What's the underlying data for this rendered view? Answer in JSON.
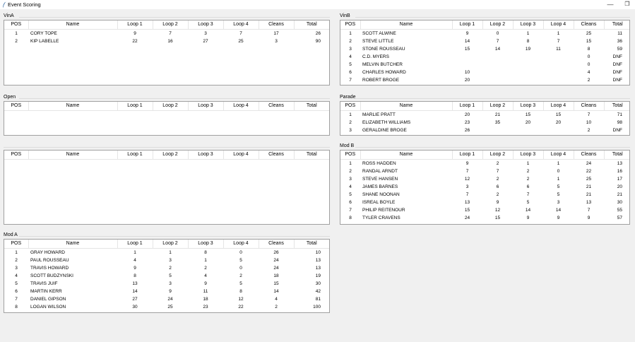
{
  "window": {
    "title": "Event Scoring"
  },
  "columns": [
    "POS",
    "Name",
    "Loop 1",
    "Loop 2",
    "Loop 3",
    "Loop 4",
    "Cleans",
    "Total"
  ],
  "panels": {
    "vina": {
      "label": "VinA",
      "rows": [
        [
          "1",
          "CORY TOPE",
          "9",
          "7",
          "3",
          "7",
          "17",
          "26"
        ],
        [
          "2",
          "KIP LABELLE",
          "22",
          "16",
          "27",
          "25",
          "3",
          "90"
        ]
      ]
    },
    "vinb": {
      "label": "VinB",
      "rows": [
        [
          "1",
          "SCOTT ALWINE",
          "9",
          "0",
          "1",
          "1",
          "25",
          "11"
        ],
        [
          "2",
          "STEVE LITTLE",
          "14",
          "7",
          "8",
          "7",
          "15",
          "36"
        ],
        [
          "3",
          "STONE ROUSSEAU",
          "15",
          "14",
          "19",
          "11",
          "8",
          "59"
        ],
        [
          "4",
          "C.D. MYERS",
          "",
          "",
          "",
          "",
          "0",
          "DNF"
        ],
        [
          "5",
          "MELVIN BUTCHER",
          "",
          "",
          "",
          "",
          "0",
          "DNF"
        ],
        [
          "6",
          "CHARLES HOWARD",
          "10",
          "",
          "",
          "",
          "4",
          "DNF"
        ],
        [
          "7",
          "ROBERT BROGE",
          "20",
          "",
          "",
          "",
          "2",
          "DNF"
        ]
      ]
    },
    "open": {
      "label": "Open",
      "rows": []
    },
    "parade": {
      "label": "Parade",
      "rows": [
        [
          "1",
          "MARLIE PRATT",
          "20",
          "21",
          "15",
          "15",
          "7",
          "71"
        ],
        [
          "2",
          "ELIZABETH WILLIAMS",
          "23",
          "35",
          "20",
          "20",
          "10",
          "98"
        ],
        [
          "3",
          "GERALDINE BROGE",
          "26",
          "",
          "",
          "",
          "2",
          "DNF"
        ]
      ]
    },
    "unnamed": {
      "label": "",
      "rows": []
    },
    "modb": {
      "label": "Mod B",
      "rows": [
        [
          "1",
          "ROSS HADDEN",
          "9",
          "2",
          "1",
          "1",
          "24",
          "13"
        ],
        [
          "2",
          "RANDAL ARNDT",
          "7",
          "7",
          "2",
          "0",
          "22",
          "16"
        ],
        [
          "3",
          "STEVE HANSEN",
          "12",
          "2",
          "2",
          "1",
          "25",
          "17"
        ],
        [
          "4",
          "JAMES BARNES",
          "3",
          "6",
          "6",
          "5",
          "21",
          "20"
        ],
        [
          "5",
          "SHANE NOONAN",
          "7",
          "2",
          "7",
          "5",
          "21",
          "21"
        ],
        [
          "6",
          "ISREAL BOYLE",
          "13",
          "9",
          "5",
          "3",
          "13",
          "30"
        ],
        [
          "7",
          "PHILIP REITENOUR",
          "15",
          "12",
          "14",
          "14",
          "7",
          "55"
        ],
        [
          "8",
          "TYLER CRAVENS",
          "24",
          "15",
          "9",
          "9",
          "9",
          "57"
        ]
      ]
    },
    "moda": {
      "label": "Mod A",
      "rows": [
        [
          "1",
          "GRAY HOWARD",
          "1",
          "1",
          "8",
          "0",
          "26",
          "10"
        ],
        [
          "2",
          "PAUL ROUSSEAU",
          "4",
          "3",
          "1",
          "5",
          "24",
          "13"
        ],
        [
          "3",
          "TRAVIS HOWARD",
          "9",
          "2",
          "2",
          "0",
          "24",
          "13"
        ],
        [
          "4",
          "SCOTT BUDZYNSKI",
          "8",
          "5",
          "4",
          "2",
          "18",
          "19"
        ],
        [
          "5",
          "TRAVIS JUIF",
          "13",
          "3",
          "9",
          "5",
          "15",
          "30"
        ],
        [
          "6",
          "MARTIN KERR",
          "14",
          "9",
          "11",
          "8",
          "14",
          "42"
        ],
        [
          "7",
          "DANIEL GIPSON",
          "27",
          "24",
          "18",
          "12",
          "4",
          "81"
        ],
        [
          "8",
          "LOGAN WILSON",
          "30",
          "25",
          "23",
          "22",
          "2",
          "100"
        ]
      ]
    }
  }
}
